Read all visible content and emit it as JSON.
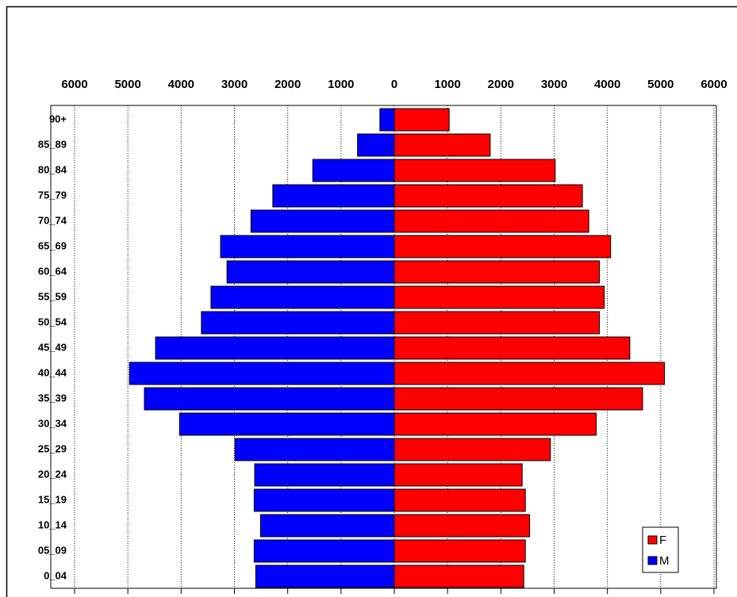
{
  "chart_data": {
    "type": "pyramid",
    "categories": [
      "90+",
      "85_89",
      "80_84",
      "75_79",
      "70_74",
      "65_69",
      "60_64",
      "55_59",
      "50_54",
      "45_49",
      "40_44",
      "35_39",
      "30_34",
      "25_29",
      "20_24",
      "15_19",
      "10_14",
      "05_09",
      "0_04"
    ],
    "series": [
      {
        "name": "F",
        "color": "#ff0000",
        "values": [
          1030,
          1800,
          3020,
          3530,
          3650,
          4060,
          3850,
          3940,
          3850,
          4420,
          5070,
          4660,
          3790,
          2930,
          2400,
          2460,
          2540,
          2460,
          2430
        ]
      },
      {
        "name": "M",
        "color": "#0000ff",
        "values": [
          -270,
          -690,
          -1530,
          -2280,
          -2690,
          -3260,
          -3140,
          -3440,
          -3620,
          -4480,
          -4970,
          -4690,
          -4030,
          -2990,
          -2620,
          -2630,
          -2510,
          -2630,
          -2600
        ]
      }
    ],
    "xlim": [
      -6000,
      6000
    ],
    "xticks": [
      {
        "value": -6000,
        "label": "6000"
      },
      {
        "value": -5000,
        "label": "5000"
      },
      {
        "value": -4000,
        "label": "4000"
      },
      {
        "value": -3000,
        "label": "3000"
      },
      {
        "value": -2000,
        "label": "2000"
      },
      {
        "value": -1000,
        "label": "1000"
      },
      0,
      1000,
      2000,
      3000,
      4000,
      5000,
      6000
    ],
    "grid": true,
    "legend": "lower right"
  }
}
